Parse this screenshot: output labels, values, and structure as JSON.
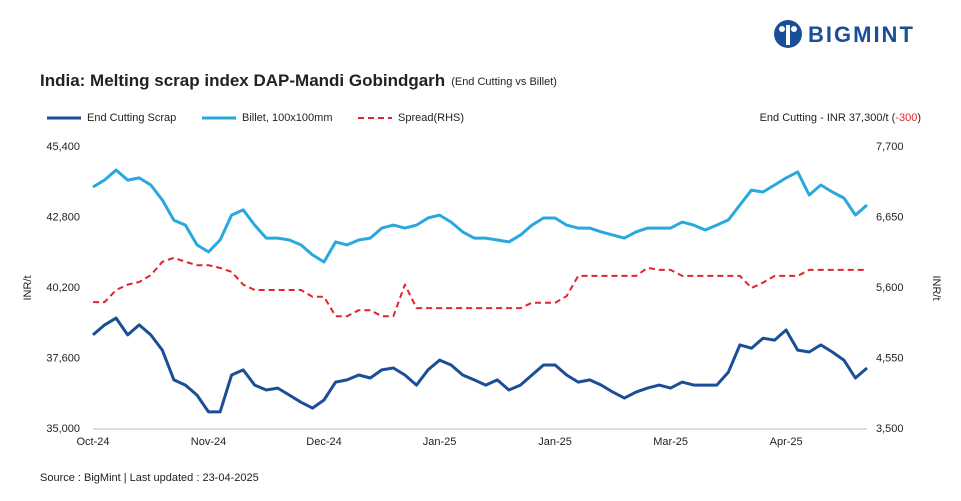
{
  "brand": "BIGMINT",
  "chart_data": {
    "type": "line",
    "title": "India: Melting scrap index DAP-Mandi Gobindgarh",
    "subtitle": "(End Cutting  vs Billet)",
    "annotation": {
      "prefix": "End Cutting - INR 37,300/t (",
      "change": "-300",
      "suffix": ")"
    },
    "source": "Source : BigMint | Last updated : 23-04-2025",
    "y_label": "INR/t",
    "y2_label": "INR/t",
    "categories": [
      "Oct-24",
      null,
      null,
      null,
      null,
      null,
      null,
      null,
      null,
      null,
      "Nov-24",
      null,
      null,
      null,
      null,
      null,
      null,
      null,
      null,
      null,
      "Dec-24",
      null,
      null,
      null,
      null,
      null,
      null,
      null,
      null,
      null,
      "Jan-25",
      null,
      null,
      null,
      null,
      null,
      null,
      null,
      null,
      null,
      "Jan-25",
      null,
      null,
      null,
      null,
      null,
      null,
      null,
      null,
      null,
      "Mar-25",
      null,
      null,
      null,
      null,
      null,
      null,
      null,
      null,
      null,
      "Apr-25",
      null,
      null,
      null,
      null,
      null,
      null,
      null
    ],
    "ylim": [
      35000,
      45400
    ],
    "yticks": [
      {
        "value": 35000,
        "label": "35,000"
      },
      {
        "value": 37600,
        "label": "37,600"
      },
      {
        "value": 40200,
        "label": "40,200"
      },
      {
        "value": 42800,
        "label": "42,800"
      },
      {
        "value": 45400,
        "label": "45,400"
      }
    ],
    "y2lim": [
      3500,
      7700
    ],
    "y2ticks": [
      {
        "value": 3500,
        "label": "3,500"
      },
      {
        "value": 4550,
        "label": "4,550"
      },
      {
        "value": 5600,
        "label": "5,600"
      },
      {
        "value": 6650,
        "label": "6,650"
      },
      {
        "value": 7700,
        "label": "7,700"
      }
    ],
    "series": [
      {
        "name": "End Cutting Scrap",
        "color": "#1a4e96",
        "dash": false,
        "values": [
          38470,
          38840,
          39090,
          38470,
          38840,
          38470,
          37910,
          36810,
          36620,
          36250,
          35630,
          35630,
          36990,
          37180,
          36620,
          36440,
          36510,
          36250,
          35990,
          35770,
          36070,
          36730,
          36810,
          36990,
          36880,
          37180,
          37250,
          36990,
          36620,
          37180,
          37540,
          37360,
          36990,
          36810,
          36620,
          36810,
          36440,
          36620,
          36990,
          37360,
          37360,
          36990,
          36730,
          36810,
          36620,
          36360,
          36140,
          36360,
          36510,
          36620,
          36510,
          36730,
          36620,
          36620,
          36620,
          37100,
          38100,
          37980,
          38350,
          38280,
          38650,
          37910,
          37840,
          38100,
          37840,
          37540,
          36880,
          37250
        ]
      },
      {
        "name": "Billet, 100x100mm",
        "color": "#29a8df",
        "dash": false,
        "values": [
          43925,
          44183,
          44550,
          44180,
          44260,
          44000,
          43450,
          42700,
          42520,
          41790,
          41530,
          41970,
          42890,
          43080,
          42520,
          42040,
          42040,
          41970,
          41790,
          41420,
          41160,
          41900,
          41790,
          41970,
          42040,
          42410,
          42520,
          42410,
          42520,
          42780,
          42890,
          42630,
          42270,
          42040,
          42040,
          41970,
          41900,
          42150,
          42520,
          42780,
          42780,
          42520,
          42410,
          42410,
          42270,
          42150,
          42040,
          42270,
          42410,
          42410,
          42410,
          42630,
          42520,
          42340,
          42520,
          42710,
          43260,
          43810,
          43740,
          44000,
          44260,
          44480,
          43630,
          44000,
          43740,
          43520,
          42890,
          43260
        ]
      },
      {
        "name": "Spread(RHS)",
        "color": "#e3242b",
        "dash": true,
        "axis": "y2",
        "values": [
          5390,
          5390,
          5570,
          5650,
          5690,
          5790,
          5990,
          6050,
          5990,
          5940,
          5940,
          5900,
          5840,
          5650,
          5570,
          5570,
          5570,
          5570,
          5570,
          5470,
          5470,
          5180,
          5180,
          5270,
          5270,
          5180,
          5180,
          5650,
          5300,
          5300,
          5300,
          5300,
          5300,
          5300,
          5300,
          5300,
          5300,
          5300,
          5380,
          5380,
          5380,
          5480,
          5780,
          5780,
          5780,
          5780,
          5780,
          5780,
          5900,
          5870,
          5870,
          5780,
          5780,
          5780,
          5780,
          5780,
          5780,
          5600,
          5680,
          5780,
          5780,
          5780,
          5870,
          5870,
          5870,
          5870,
          5870,
          5870
        ]
      }
    ]
  }
}
